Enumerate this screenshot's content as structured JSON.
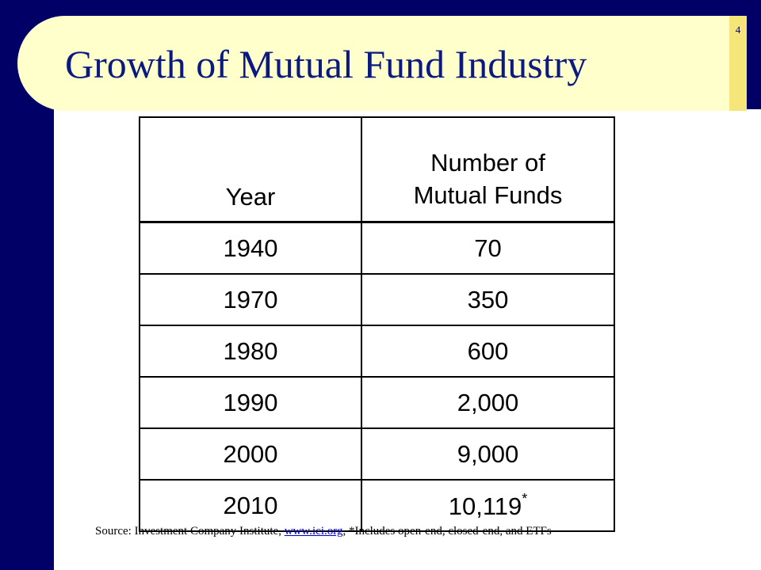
{
  "slide": {
    "page_number": "4",
    "title": "Growth of Mutual Fund Industry"
  },
  "table": {
    "headers": {
      "year": "Year",
      "count_line1": "Number of",
      "count_line2": "Mutual Funds"
    },
    "rows": [
      {
        "year": "1940",
        "count": "70",
        "note": ""
      },
      {
        "year": "1970",
        "count": "350",
        "note": ""
      },
      {
        "year": "1980",
        "count": "600",
        "note": ""
      },
      {
        "year": "1990",
        "count": "2,000",
        "note": ""
      },
      {
        "year": "2000",
        "count": "9,000",
        "note": ""
      },
      {
        "year": "2010",
        "count": "10,119",
        "note": "*"
      }
    ]
  },
  "source": {
    "prefix": "Source: Investment Company Institute, ",
    "link_text": "www.ici.org",
    "suffix": ", *Includes open-end, closed-end, and ETFs"
  },
  "colors": {
    "frame": "#000066",
    "title_band": "#ffffcc",
    "title_text": "#0a1a80",
    "link": "#0000cc"
  }
}
